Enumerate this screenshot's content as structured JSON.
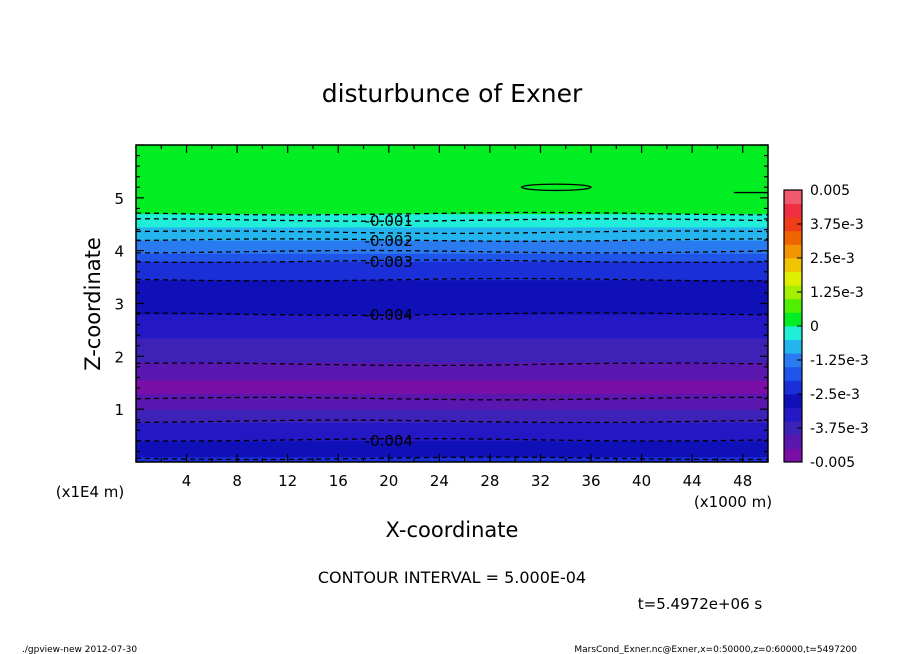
{
  "chart_data": {
    "type": "contour",
    "title": "disturbunce of Exner",
    "xlabel": "X-coordinate",
    "ylabel": "Z-coordinate",
    "x_unit_label": "(x1000 m)",
    "y_unit_label": "(x1E4 m)",
    "xlim": [
      0,
      50
    ],
    "ylim": [
      0,
      6
    ],
    "x_ticks": [
      4,
      8,
      12,
      16,
      20,
      24,
      28,
      32,
      36,
      40,
      44,
      48
    ],
    "y_ticks": [
      1,
      2,
      3,
      4,
      5
    ],
    "contour_interval_text": "CONTOUR INTERVAL = 5.000E-04",
    "time_text": "t=5.4972e+06 s",
    "footer_left": "./gpview-new  2012-07-30",
    "footer_right": "MarsCond_Exner.nc@Exner,x=0:50000,z=0:60000,t=5497200",
    "colorbar": {
      "vmin": -0.005,
      "vmax": 0.005,
      "levels": [
        -0.005,
        -0.0045,
        -0.004,
        -0.0035,
        -0.003,
        -0.0025,
        -0.002,
        -0.0015,
        -0.001,
        -0.0005,
        0,
        0.0005,
        0.001,
        0.0015,
        0.002,
        0.0025,
        0.003,
        0.0035,
        0.004,
        0.0045,
        0.005
      ],
      "colors": [
        "#7a0ea6",
        "#5a17b0",
        "#3d22b8",
        "#2318c4",
        "#1010b8",
        "#1a2fd8",
        "#1f55e8",
        "#2a7af0",
        "#25b5ee",
        "#20eed8",
        "#00ee22",
        "#50ee00",
        "#a6ee00",
        "#e0ee00",
        "#f0c400",
        "#f09400",
        "#f06400",
        "#f03c18",
        "#f03040",
        "#f05a6c",
        "#f58a98"
      ],
      "tick_labels": [
        "-0.005",
        "-3.75e-3",
        "-2.5e-3",
        "-1.25e-3",
        "0",
        "1.25e-3",
        "2.5e-3",
        "3.75e-3",
        "0.005"
      ],
      "tick_values": [
        -0.005,
        -0.00375,
        -0.0025,
        -0.00125,
        0,
        0.00125,
        0.0025,
        0.00375,
        0.005
      ]
    },
    "bands": [
      {
        "z0": 0.0,
        "z1": 0.1,
        "color": "#1a2fd8"
      },
      {
        "z0": 0.1,
        "z1": 0.4,
        "color": "#1010b8"
      },
      {
        "z0": 0.4,
        "z1": 0.75,
        "color": "#2318c4"
      },
      {
        "z0": 0.75,
        "z1": 1.0,
        "color": "#3d22b8"
      },
      {
        "z0": 1.0,
        "z1": 1.3,
        "color": "#5a17b0"
      },
      {
        "z0": 1.3,
        "z1": 1.55,
        "color": "#7a0ea6"
      },
      {
        "z0": 1.55,
        "z1": 1.9,
        "color": "#5a17b0"
      },
      {
        "z0": 1.9,
        "z1": 2.35,
        "color": "#3d22b8"
      },
      {
        "z0": 2.35,
        "z1": 2.8,
        "color": "#2318c4"
      },
      {
        "z0": 2.8,
        "z1": 3.45,
        "color": "#1010b8"
      },
      {
        "z0": 3.45,
        "z1": 3.8,
        "color": "#1a2fd8"
      },
      {
        "z0": 3.8,
        "z1": 3.95,
        "color": "#1f55e8"
      },
      {
        "z0": 3.95,
        "z1": 4.2,
        "color": "#2a7af0"
      },
      {
        "z0": 4.2,
        "z1": 4.45,
        "color": "#25b5ee"
      },
      {
        "z0": 4.45,
        "z1": 4.7,
        "color": "#20eed8"
      },
      {
        "z0": 4.7,
        "z1": 6.0,
        "color": "#00ee22"
      }
    ],
    "contour_lines": [
      {
        "z": 0.07,
        "dashed": true,
        "label": ""
      },
      {
        "z": 0.42,
        "dashed": true,
        "label": "-0.004"
      },
      {
        "z": 0.77,
        "dashed": true,
        "label": ""
      },
      {
        "z": 1.2,
        "dashed": true,
        "label": ""
      },
      {
        "z": 1.85,
        "dashed": true,
        "label": ""
      },
      {
        "z": 2.8,
        "dashed": true,
        "label": "-0.004"
      },
      {
        "z": 3.45,
        "dashed": true,
        "label": ""
      },
      {
        "z": 3.8,
        "dashed": true,
        "label": "-0.003"
      },
      {
        "z": 3.98,
        "dashed": true,
        "label": ""
      },
      {
        "z": 4.2,
        "dashed": true,
        "label": "-0.002"
      },
      {
        "z": 4.35,
        "dashed": true,
        "label": ""
      },
      {
        "z": 4.58,
        "dashed": true,
        "label": "-0.001"
      },
      {
        "z": 4.7,
        "dashed": true,
        "label": ""
      }
    ],
    "zero_contours": [
      {
        "x0": 30.5,
        "x1": 36.0,
        "zc": 5.2,
        "dz": 0.06
      },
      {
        "x0": 47.3,
        "x1": 50.0,
        "zc": 5.1,
        "dz": 0.0
      }
    ]
  }
}
